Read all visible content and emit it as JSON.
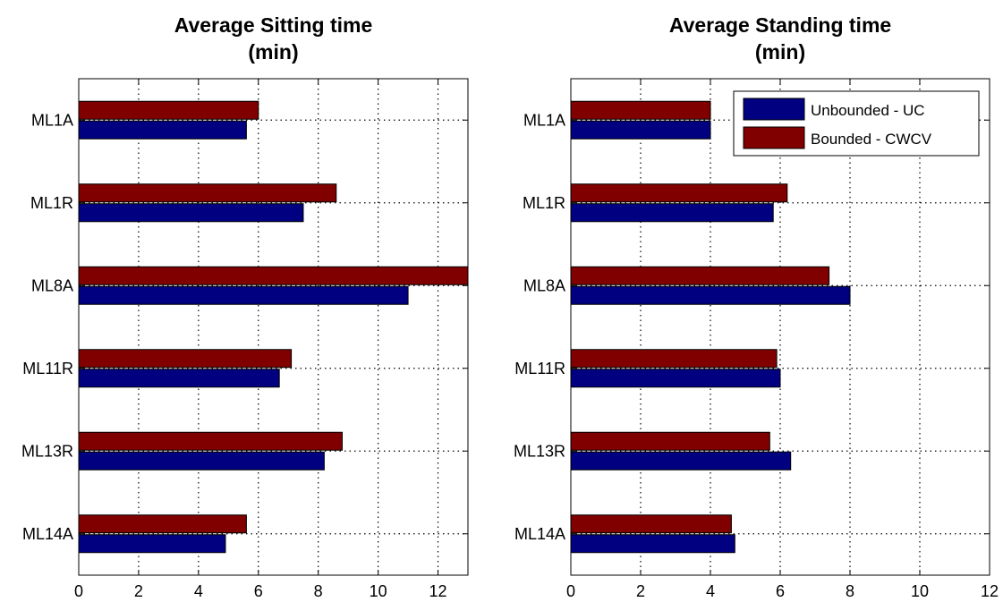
{
  "chart_data": [
    {
      "type": "bar",
      "orientation": "horizontal",
      "title": [
        "Average Sitting time",
        "(min)"
      ],
      "xlabel": "",
      "ylabel": "",
      "categories": [
        "ML1A",
        "ML1R",
        "ML8A",
        "ML11R",
        "ML13R",
        "ML14A"
      ],
      "xlim": [
        0,
        13
      ],
      "xticks": [
        0,
        2,
        4,
        6,
        8,
        10,
        12
      ],
      "grid": true,
      "series": [
        {
          "name": "Unbounded - UC",
          "color": "#000080",
          "values": [
            5.6,
            7.5,
            11.0,
            6.7,
            8.2,
            4.9
          ]
        },
        {
          "name": "Bounded - CWCV",
          "color": "#800000",
          "values": [
            6.0,
            8.6,
            13.0,
            7.1,
            8.8,
            5.6
          ]
        }
      ],
      "legend": false
    },
    {
      "type": "bar",
      "orientation": "horizontal",
      "title": [
        "Average Standing time",
        "(min)"
      ],
      "xlabel": "",
      "ylabel": "",
      "categories": [
        "ML1A",
        "ML1R",
        "ML8A",
        "ML11R",
        "ML13R",
        "ML14A"
      ],
      "xlim": [
        0,
        12
      ],
      "xticks": [
        0,
        2,
        4,
        6,
        8,
        10,
        12
      ],
      "grid": true,
      "series": [
        {
          "name": "Unbounded - UC",
          "color": "#000080",
          "values": [
            4.0,
            5.8,
            8.0,
            6.0,
            6.3,
            4.7
          ]
        },
        {
          "name": "Bounded - CWCV",
          "color": "#800000",
          "values": [
            4.0,
            6.2,
            7.4,
            5.9,
            5.7,
            4.6
          ]
        }
      ],
      "legend": true,
      "legend_location": "top-right"
    }
  ]
}
